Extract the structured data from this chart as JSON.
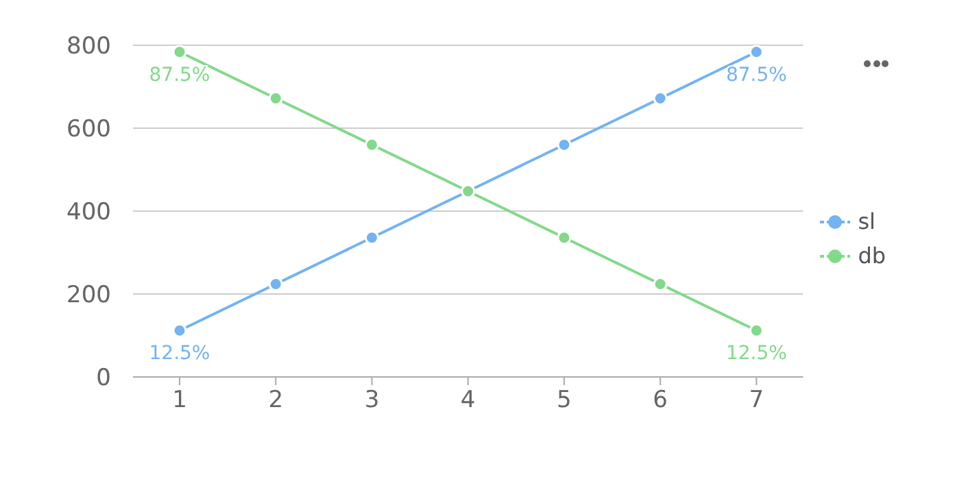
{
  "chart_data": {
    "type": "line",
    "categories": [
      "1",
      "2",
      "3",
      "4",
      "5",
      "6",
      "7"
    ],
    "series": [
      {
        "name": "sl",
        "color": "#73b3f0",
        "values": [
          112,
          224,
          336,
          448,
          560,
          672,
          784
        ]
      },
      {
        "name": "db",
        "color": "#82d98a",
        "values": [
          784,
          672,
          560,
          448,
          336,
          224,
          112
        ]
      }
    ],
    "annotations": [
      {
        "text": "12.5%",
        "x": "1",
        "y": 112
      },
      {
        "text": "87.5%",
        "x": "7",
        "y": 784
      },
      {
        "text": "87.5%",
        "x": "1",
        "y": 784
      },
      {
        "text": "12.5%",
        "x": "7",
        "y": 112
      }
    ],
    "ylim": [
      0,
      800
    ],
    "yticks": [
      0,
      200,
      400,
      600,
      800
    ],
    "grid": "y",
    "legend": "right",
    "marker": "circle",
    "line_style": "solid"
  }
}
